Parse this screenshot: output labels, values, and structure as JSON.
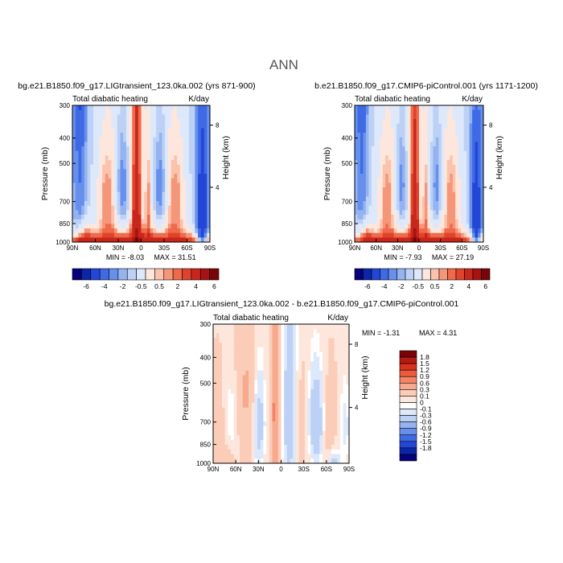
{
  "page_title": "ANN",
  "chart_data": [
    {
      "type": "heatmap",
      "title": "bg.e21.B1850.f09_g17.LIGtransient_123.0ka.002 (yrs 871-900)",
      "subtitle": "Total diabatic heating",
      "units": "K/day",
      "xlabel": "",
      "ylabel": "Pressure (mb)",
      "ylabel_right": "Height (km)",
      "x_ticks": [
        "90N",
        "60N",
        "30N",
        "0",
        "30S",
        "60S",
        "90S"
      ],
      "y_ticks": [
        "300",
        "400",
        "500",
        "700",
        "850",
        "1000"
      ],
      "y_right_ticks": [
        "8",
        "4"
      ],
      "min_label": "MIN = -8.03",
      "max_label": "MAX = 31.51",
      "colorbar": {
        "orientation": "horizontal",
        "tick_labels": [
          "-6",
          "-4",
          "-2",
          "-0.5",
          "0.5",
          "2",
          "4",
          "6"
        ],
        "colors": [
          "#08007a",
          "#0c26a8",
          "#2446d6",
          "#3f6ae6",
          "#6790ec",
          "#94b3f0",
          "#bcd1f5",
          "#dde9fb",
          "#fde6dc",
          "#fbc3ad",
          "#f59679",
          "#ee6a4a",
          "#e0432b",
          "#c9261b",
          "#a61312",
          "#7a0307"
        ]
      }
    },
    {
      "type": "heatmap",
      "title": "b.e21.B1850.f09_g17.CMIP6-piControl.001 (yrs 1171-1200)",
      "subtitle": "Total diabatic heating",
      "units": "K/day",
      "xlabel": "",
      "ylabel": "Pressure (mb)",
      "ylabel_right": "Height (km)",
      "x_ticks": [
        "90N",
        "60N",
        "30N",
        "0",
        "30S",
        "60S",
        "90S"
      ],
      "y_ticks": [
        "300",
        "400",
        "500",
        "700",
        "850",
        "1000"
      ],
      "y_right_ticks": [
        "8",
        "4"
      ],
      "min_label": "MIN = -7.93",
      "max_label": "MAX = 27.19",
      "colorbar": {
        "orientation": "horizontal",
        "tick_labels": [
          "-6",
          "-4",
          "-2",
          "-0.5",
          "0.5",
          "2",
          "4",
          "6"
        ],
        "colors": [
          "#08007a",
          "#0c26a8",
          "#2446d6",
          "#3f6ae6",
          "#6790ec",
          "#94b3f0",
          "#bcd1f5",
          "#dde9fb",
          "#fde6dc",
          "#fbc3ad",
          "#f59679",
          "#ee6a4a",
          "#e0432b",
          "#c9261b",
          "#a61312",
          "#7a0307"
        ]
      }
    },
    {
      "type": "heatmap",
      "title": "bg.e21.B1850.f09_g17.LIGtransient_123.0ka.002 - b.e21.B1850.f09_g17.CMIP6-piControl.001",
      "subtitle": "Total diabatic heating",
      "units": "K/day",
      "xlabel": "",
      "ylabel": "Pressure (mb)",
      "ylabel_right": "Height (km)",
      "x_ticks": [
        "90N",
        "60N",
        "30N",
        "0",
        "30S",
        "60S",
        "90S"
      ],
      "y_ticks": [
        "300",
        "400",
        "500",
        "700",
        "850",
        "1000"
      ],
      "y_right_ticks": [
        "8",
        "4"
      ],
      "min_label": "MIN = -1.31",
      "max_label": "MAX = 4.31",
      "colorbar": {
        "orientation": "vertical",
        "tick_labels": [
          "1.8",
          "1.5",
          "1.2",
          "0.9",
          "0.6",
          "0.3",
          "0.1",
          "0",
          "-0.1",
          "-0.3",
          "-0.6",
          "-0.9",
          "-1.2",
          "-1.5",
          "-1.8"
        ],
        "colors": [
          "#7a0307",
          "#b51a14",
          "#d9321f",
          "#ee5a3b",
          "#f48463",
          "#f8aa8e",
          "#fbcdb8",
          "#fde6dc",
          "#ffffff",
          "#dde9fb",
          "#bcd1f5",
          "#94b3f0",
          "#6790ec",
          "#3f6ae6",
          "#2446d6",
          "#0c26a8",
          "#08007a"
        ]
      }
    }
  ]
}
